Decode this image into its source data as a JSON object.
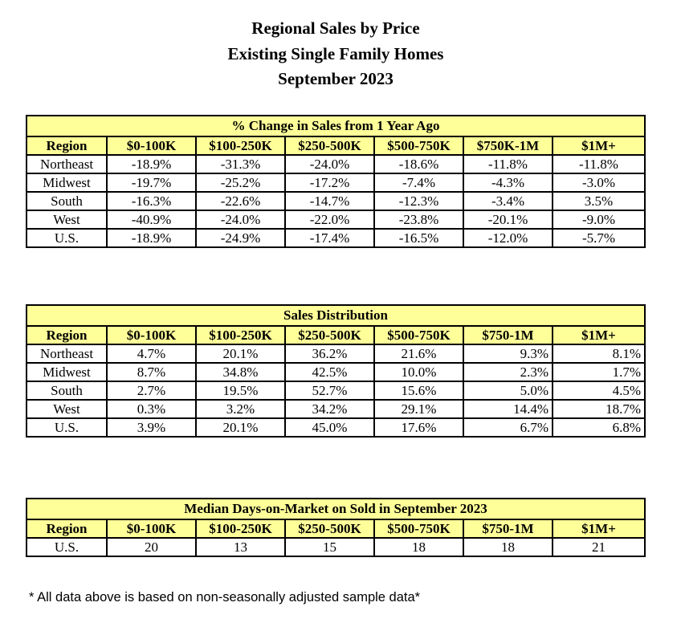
{
  "title": {
    "line1": "Regional Sales by Price",
    "line2": "Existing Single Family Homes",
    "line3": "September 2023"
  },
  "table1": {
    "caption": "% Change in Sales from 1 Year Ago",
    "headers": [
      "Region",
      "$0-100K",
      "$100-250K",
      "$250-500K",
      "$500-750K",
      "$750K-1M",
      "$1M+"
    ],
    "rows": [
      [
        "Northeast",
        "-18.9%",
        "-31.3%",
        "-24.0%",
        "-18.6%",
        "-11.8%",
        "-11.8%"
      ],
      [
        "Midwest",
        "-19.7%",
        "-25.2%",
        "-17.2%",
        "-7.4%",
        "-4.3%",
        "-3.0%"
      ],
      [
        "South",
        "-16.3%",
        "-22.6%",
        "-14.7%",
        "-12.3%",
        "-3.4%",
        "3.5%"
      ],
      [
        "West",
        "-40.9%",
        "-24.0%",
        "-22.0%",
        "-23.8%",
        "-20.1%",
        "-9.0%"
      ],
      [
        "U.S.",
        "-18.9%",
        "-24.9%",
        "-17.4%",
        "-16.5%",
        "-12.0%",
        "-5.7%"
      ]
    ]
  },
  "table2": {
    "caption": "Sales Distribution",
    "headers": [
      "Region",
      "$0-100K",
      "$100-250K",
      "$250-500K",
      "$500-750K",
      "$750-1M",
      "$1M+"
    ],
    "rows": [
      [
        "Northeast",
        "4.7%",
        "20.1%",
        "36.2%",
        "21.6%",
        "9.3%",
        "8.1%"
      ],
      [
        "Midwest",
        "8.7%",
        "34.8%",
        "42.5%",
        "10.0%",
        "2.3%",
        "1.7%"
      ],
      [
        "South",
        "2.7%",
        "19.5%",
        "52.7%",
        "15.6%",
        "5.0%",
        "4.5%"
      ],
      [
        "West",
        "0.3%",
        "3.2%",
        "34.2%",
        "29.1%",
        "14.4%",
        "18.7%"
      ],
      [
        "U.S.",
        "3.9%",
        "20.1%",
        "45.0%",
        "17.6%",
        "6.7%",
        "6.8%"
      ]
    ]
  },
  "table3": {
    "caption": "Median Days-on-Market on Sold in September 2023",
    "headers": [
      "Region",
      "$0-100K",
      "$100-250K",
      "$250-500K",
      "$500-750K",
      "$750-1M",
      "$1M+"
    ],
    "rows": [
      [
        "U.S.",
        "20",
        "13",
        "15",
        "18",
        "18",
        "21"
      ]
    ]
  },
  "footnote": "* All data above is based on non-seasonally adjusted sample data*"
}
